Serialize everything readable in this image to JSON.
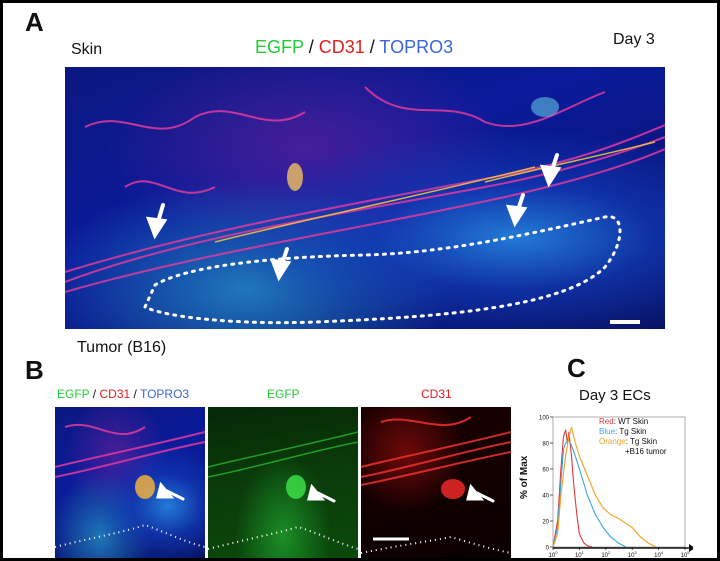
{
  "panel_a": {
    "letter": "A",
    "top_left_label": "Skin",
    "stain_egfp": "EGFP",
    "stain_cd31": "CD31",
    "stain_topro3": "TOPRO3",
    "separator": " / ",
    "top_right_label": "Day 3",
    "bottom_label": "Tumor (B16)"
  },
  "panel_b": {
    "letter": "B",
    "merge_label_egfp": "EGFP",
    "merge_label_cd31": "CD31",
    "merge_label_topro3": "TOPRO3",
    "separator": " / ",
    "egfp_label": "EGFP",
    "cd31_label": "CD31"
  },
  "panel_c": {
    "letter": "C",
    "title": "Day 3 ECs",
    "ylabel": "% of Max",
    "legend": [
      {
        "color_word": "Red",
        "rest": ": WT Skin",
        "color": "#e03a3a"
      },
      {
        "color_word": "Blue",
        "rest": ": Tg Skin",
        "color": "#3aa8e0"
      },
      {
        "color_word": "Orange",
        "rest": ": Tg Skin",
        "color": "#f0a020"
      },
      {
        "color_word": "",
        "rest": "+B16 tumor",
        "color": "#f0a020"
      }
    ]
  },
  "colors": {
    "egfp": "#22cc33",
    "cd31": "#e02020",
    "topro3": "#3a66d8"
  },
  "chart_data": {
    "type": "line",
    "title": "Day 3 ECs",
    "xlabel": "",
    "ylabel": "% of Max",
    "xscale": "log",
    "xlim": [
      1,
      100000
    ],
    "ylim": [
      0,
      100
    ],
    "y_ticks": [
      0,
      20,
      40,
      60,
      80,
      100
    ],
    "x_ticks": [
      "10^0",
      "10^1",
      "10^2",
      "10^3",
      "10^4",
      "10^5"
    ],
    "series": [
      {
        "name": "WT Skin",
        "color": "#e03a3a",
        "x": [
          1,
          1.5,
          2,
          2.5,
          3,
          3.5,
          4,
          5,
          6,
          8,
          10,
          15,
          20,
          30
        ],
        "y": [
          0,
          20,
          60,
          85,
          90,
          80,
          88,
          70,
          50,
          25,
          10,
          3,
          1,
          0
        ]
      },
      {
        "name": "Tg Skin",
        "color": "#3aa8e0",
        "x": [
          1,
          1.5,
          2,
          2.5,
          3,
          4,
          5,
          7,
          10,
          20,
          40,
          80,
          150,
          300,
          600
        ],
        "y": [
          0,
          15,
          50,
          75,
          80,
          82,
          78,
          70,
          60,
          40,
          25,
          15,
          8,
          3,
          0
        ]
      },
      {
        "name": "Tg Skin +B16 tumor",
        "color": "#f0a020",
        "x": [
          1,
          1.5,
          2,
          3,
          4,
          5,
          7,
          10,
          20,
          40,
          80,
          150,
          300,
          600,
          1000,
          2000,
          4000,
          8000
        ],
        "y": [
          0,
          10,
          40,
          70,
          85,
          92,
          80,
          70,
          55,
          40,
          30,
          25,
          22,
          18,
          15,
          8,
          3,
          0
        ]
      }
    ]
  }
}
